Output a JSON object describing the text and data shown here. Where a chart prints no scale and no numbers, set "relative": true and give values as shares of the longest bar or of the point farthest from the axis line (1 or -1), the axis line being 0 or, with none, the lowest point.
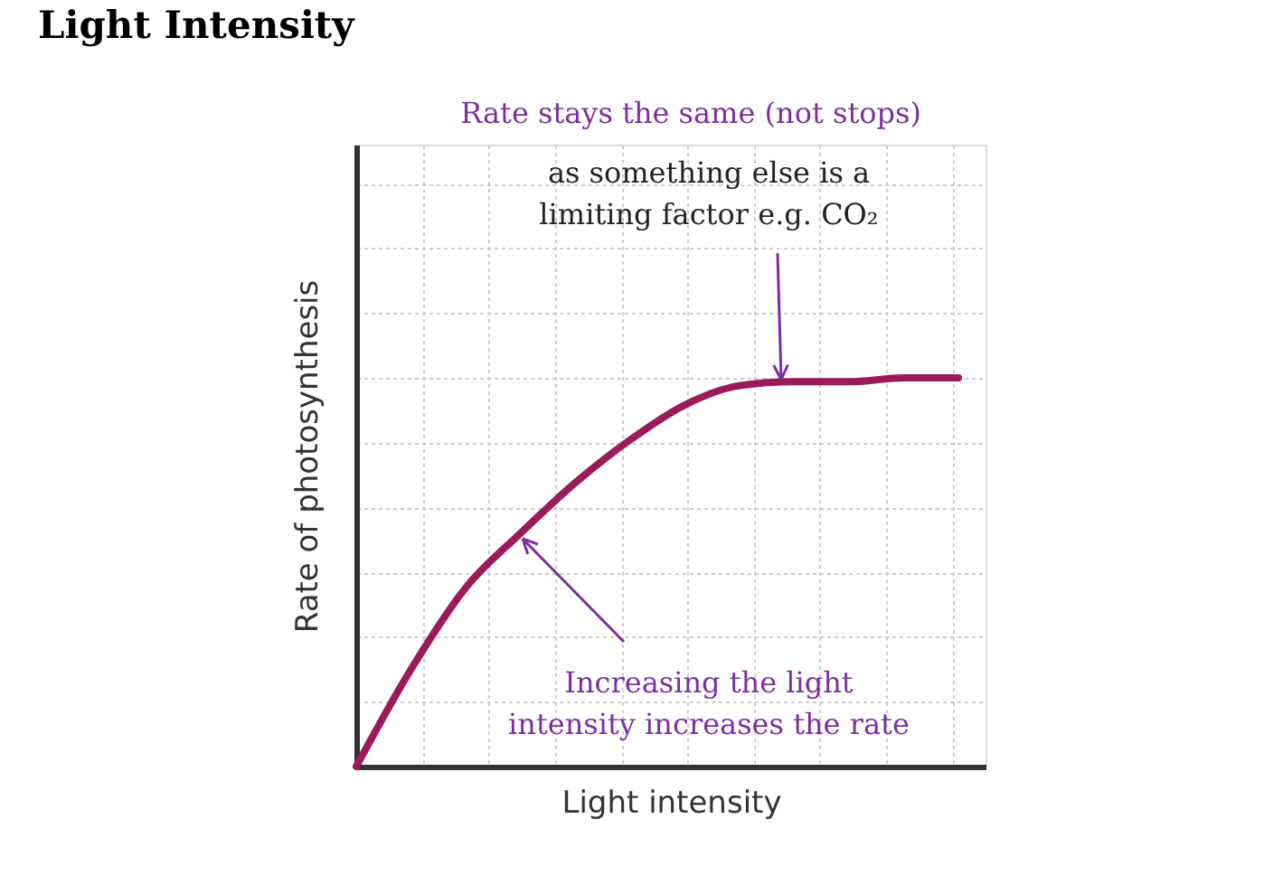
{
  "chart_data": {
    "type": "line",
    "title": "Light Intensity",
    "xlabel": "Light intensity",
    "ylabel": "Rate of photosynthesis",
    "categories": [
      null,
      null,
      null,
      null,
      null,
      null,
      null,
      null,
      null,
      null,
      null,
      null
    ],
    "series": [
      {
        "color": "#9b1b5a",
        "values": [
          0,
          0.25,
          0.46,
          0.6,
          0.73,
          0.84,
          0.93,
          0.98,
          0.99,
          0.99,
          1,
          1
        ]
      }
    ],
    "relative": true,
    "grid": true,
    "marker": "none",
    "line_style": "solid",
    "annotations": [
      "Rate stays the same (not stops)",
      "as something else is a limiting factor e.g. CO₂",
      "Increasing the light intensity increases the rate"
    ]
  }
}
